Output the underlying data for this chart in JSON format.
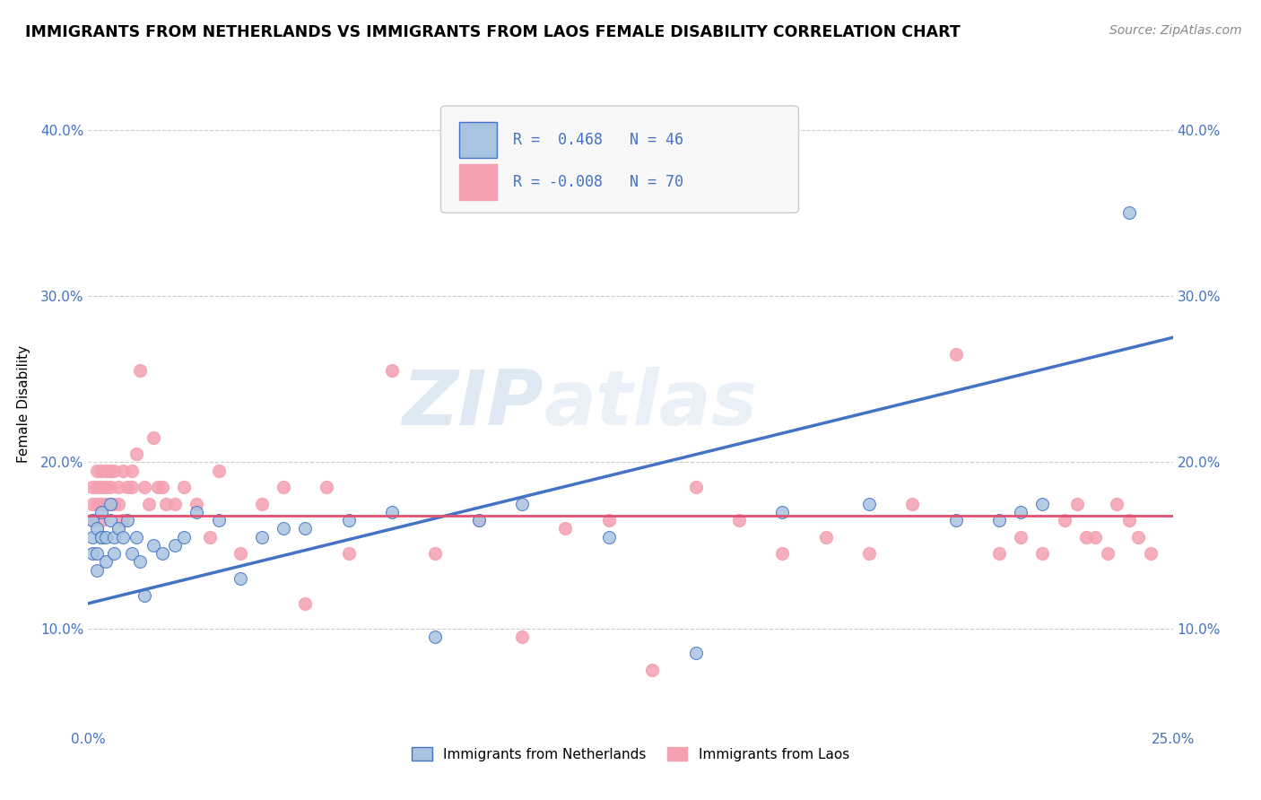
{
  "title": "IMMIGRANTS FROM NETHERLANDS VS IMMIGRANTS FROM LAOS FEMALE DISABILITY CORRELATION CHART",
  "source": "Source: ZipAtlas.com",
  "ylabel": "Female Disability",
  "r_netherlands": 0.468,
  "n_netherlands": 46,
  "r_laos": -0.008,
  "n_laos": 70,
  "xlim": [
    0.0,
    0.25
  ],
  "ylim": [
    0.04,
    0.43
  ],
  "yticks": [
    0.1,
    0.2,
    0.3,
    0.4
  ],
  "ytick_labels": [
    "10.0%",
    "20.0%",
    "30.0%",
    "40.0%"
  ],
  "color_netherlands": "#a8c4e0",
  "color_laos": "#f4a0b0",
  "line_color_netherlands": "#4472c4",
  "line_color_laos": "#e05070",
  "watermark_zip": "ZIP",
  "watermark_atlas": "atlas",
  "legend_label_netherlands": "Immigrants from Netherlands",
  "legend_label_laos": "Immigrants from Laos",
  "netherlands_x": [
    0.001,
    0.001,
    0.001,
    0.002,
    0.002,
    0.002,
    0.003,
    0.003,
    0.003,
    0.004,
    0.004,
    0.005,
    0.005,
    0.006,
    0.006,
    0.007,
    0.008,
    0.009,
    0.01,
    0.011,
    0.012,
    0.013,
    0.015,
    0.017,
    0.02,
    0.022,
    0.025,
    0.03,
    0.035,
    0.04,
    0.045,
    0.05,
    0.06,
    0.07,
    0.08,
    0.09,
    0.1,
    0.12,
    0.14,
    0.16,
    0.18,
    0.2,
    0.21,
    0.215,
    0.22,
    0.24
  ],
  "netherlands_y": [
    0.155,
    0.145,
    0.165,
    0.145,
    0.16,
    0.135,
    0.155,
    0.17,
    0.155,
    0.155,
    0.14,
    0.165,
    0.175,
    0.155,
    0.145,
    0.16,
    0.155,
    0.165,
    0.145,
    0.155,
    0.14,
    0.12,
    0.15,
    0.145,
    0.15,
    0.155,
    0.17,
    0.165,
    0.13,
    0.155,
    0.16,
    0.16,
    0.165,
    0.17,
    0.095,
    0.165,
    0.175,
    0.155,
    0.085,
    0.17,
    0.175,
    0.165,
    0.165,
    0.17,
    0.175,
    0.35
  ],
  "laos_x": [
    0.001,
    0.001,
    0.001,
    0.002,
    0.002,
    0.002,
    0.003,
    0.003,
    0.003,
    0.003,
    0.004,
    0.004,
    0.004,
    0.005,
    0.005,
    0.005,
    0.006,
    0.006,
    0.007,
    0.007,
    0.008,
    0.008,
    0.009,
    0.01,
    0.01,
    0.011,
    0.012,
    0.013,
    0.014,
    0.015,
    0.016,
    0.017,
    0.018,
    0.02,
    0.022,
    0.025,
    0.028,
    0.03,
    0.035,
    0.04,
    0.045,
    0.05,
    0.055,
    0.06,
    0.07,
    0.08,
    0.09,
    0.1,
    0.11,
    0.12,
    0.13,
    0.14,
    0.15,
    0.16,
    0.17,
    0.18,
    0.19,
    0.2,
    0.21,
    0.215,
    0.22,
    0.225,
    0.228,
    0.23,
    0.232,
    0.235,
    0.237,
    0.24,
    0.242,
    0.245
  ],
  "laos_y": [
    0.175,
    0.165,
    0.185,
    0.175,
    0.185,
    0.195,
    0.175,
    0.185,
    0.195,
    0.165,
    0.185,
    0.195,
    0.175,
    0.195,
    0.185,
    0.175,
    0.175,
    0.195,
    0.185,
    0.175,
    0.195,
    0.165,
    0.185,
    0.195,
    0.185,
    0.205,
    0.255,
    0.185,
    0.175,
    0.215,
    0.185,
    0.185,
    0.175,
    0.175,
    0.185,
    0.175,
    0.155,
    0.195,
    0.145,
    0.175,
    0.185,
    0.115,
    0.185,
    0.145,
    0.255,
    0.145,
    0.165,
    0.095,
    0.16,
    0.165,
    0.075,
    0.185,
    0.165,
    0.145,
    0.155,
    0.145,
    0.175,
    0.265,
    0.145,
    0.155,
    0.145,
    0.165,
    0.175,
    0.155,
    0.155,
    0.145,
    0.175,
    0.165,
    0.155,
    0.145
  ],
  "nl_line_x0": 0.0,
  "nl_line_y0": 0.115,
  "nl_line_x1": 0.25,
  "nl_line_y1": 0.275,
  "laos_line_y": 0.168
}
